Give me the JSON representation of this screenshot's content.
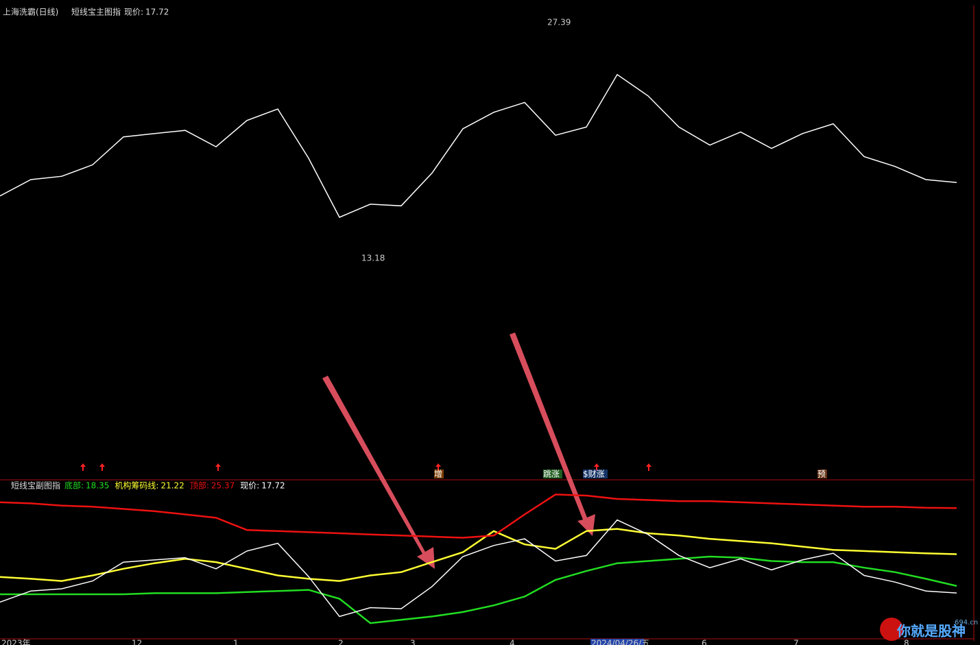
{
  "chart_data": [
    {
      "type": "line",
      "title": "上海洗霸(日线)",
      "subtitle": "短线宝主图指",
      "ylim": [
        -0.4,
        27.8
      ],
      "series": [
        {
          "name": "现价:",
          "color": "#ffffff",
          "values": [
            16.9,
            17.9,
            18.1,
            18.8,
            20.5,
            20.7,
            20.9,
            19.9,
            21.5,
            22.2,
            19.2,
            15.6,
            16.4,
            16.3,
            18.3,
            21.0,
            22.0,
            22.6,
            20.6,
            21.1,
            24.3,
            23.0,
            21.1,
            20.0,
            20.8,
            19.8,
            20.7,
            21.3,
            19.3,
            18.7,
            17.9,
            17.72
          ]
        }
      ],
      "high": 27.39,
      "low": 13.18,
      "signals": [
        "增",
        "跳涨",
        "$财涨",
        "预"
      ]
    },
    {
      "type": "line",
      "title": "短线宝副图指",
      "ylim": [
        13.4,
        27.8
      ],
      "series": [
        {
          "name": "底部:",
          "color": "#22dd22",
          "values": [
            17.6,
            17.6,
            17.6,
            17.6,
            17.6,
            17.7,
            17.7,
            17.7,
            17.8,
            17.9,
            18.0,
            17.2,
            15.0,
            15.3,
            15.6,
            16.0,
            16.6,
            17.4,
            18.9,
            19.7,
            20.4,
            20.6,
            20.8,
            21.0,
            20.9,
            20.6,
            20.5,
            20.5,
            20.0,
            19.6,
            19.0,
            18.35
          ]
        },
        {
          "name": "机构筹码线:",
          "color": "#ffff33",
          "values": [
            19.16,
            19.0,
            18.8,
            19.3,
            19.9,
            20.4,
            20.8,
            20.5,
            19.9,
            19.3,
            19.0,
            18.8,
            19.3,
            19.6,
            20.5,
            21.4,
            23.3,
            22.1,
            21.7,
            23.3,
            23.5,
            23.1,
            22.9,
            22.6,
            22.4,
            22.2,
            21.9,
            21.6,
            21.5,
            21.4,
            21.3,
            21.22
          ]
        },
        {
          "name": "顶部:",
          "color": "#ee1111",
          "values": [
            25.9,
            25.8,
            25.6,
            25.5,
            25.3,
            25.1,
            24.8,
            24.5,
            23.4,
            23.3,
            23.2,
            23.1,
            23.0,
            22.9,
            22.8,
            22.7,
            22.9,
            24.8,
            26.6,
            26.5,
            26.2,
            26.1,
            26.0,
            26.0,
            25.9,
            25.8,
            25.7,
            25.6,
            25.5,
            25.5,
            25.4,
            25.37
          ]
        },
        {
          "name": "现价:",
          "color": "#ffffff",
          "values": [
            16.9,
            17.9,
            18.1,
            18.8,
            20.5,
            20.7,
            20.9,
            19.9,
            21.5,
            22.2,
            19.2,
            15.6,
            16.4,
            16.3,
            18.3,
            21.0,
            22.0,
            22.6,
            20.6,
            21.1,
            24.3,
            23.0,
            21.1,
            20.0,
            20.8,
            19.8,
            20.7,
            21.3,
            19.3,
            18.7,
            17.9,
            17.72
          ]
        }
      ],
      "x_axis_labels": [
        "2023年",
        "12",
        "1",
        "2",
        "3",
        "4",
        "2024/04/26/五",
        "6",
        "7",
        "8"
      ],
      "watermark": "你就是股神",
      "site": "694.cn"
    }
  ]
}
